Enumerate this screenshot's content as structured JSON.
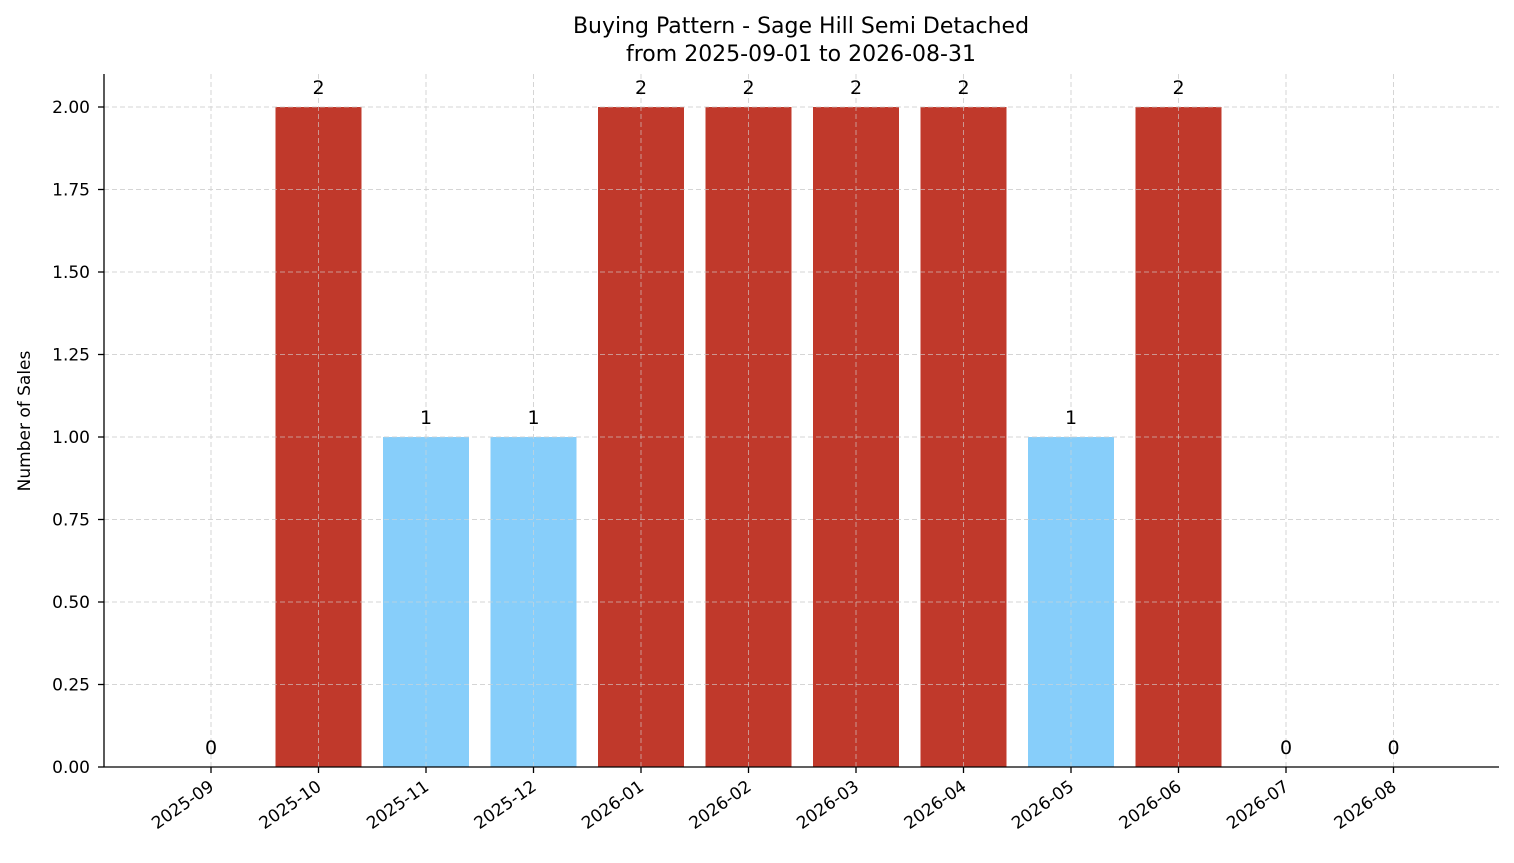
{
  "chart_data": {
    "type": "bar",
    "title_line1": "Buying Pattern - Sage Hill Semi Detached",
    "title_line2": "from 2025-09-01 to 2026-08-31",
    "xlabel": "",
    "ylabel": "Number of Sales",
    "categories": [
      "2025-09",
      "2025-10",
      "2025-11",
      "2025-12",
      "2026-01",
      "2026-02",
      "2026-03",
      "2026-04",
      "2026-05",
      "2026-06",
      "2026-07",
      "2026-08"
    ],
    "values": [
      0,
      2,
      1,
      1,
      2,
      2,
      2,
      2,
      1,
      2,
      0,
      0
    ],
    "data_labels": [
      "0",
      "2",
      "1",
      "1",
      "2",
      "2",
      "2",
      "2",
      "1",
      "2",
      "0",
      "0"
    ],
    "yticks": [
      "0.00",
      "0.25",
      "0.50",
      "0.75",
      "1.00",
      "1.25",
      "1.50",
      "1.75",
      "2.00"
    ],
    "ylim": [
      0,
      2.1
    ],
    "grid": true,
    "colors": {
      "high": "#c0392b",
      "low": "#87cefa"
    }
  }
}
